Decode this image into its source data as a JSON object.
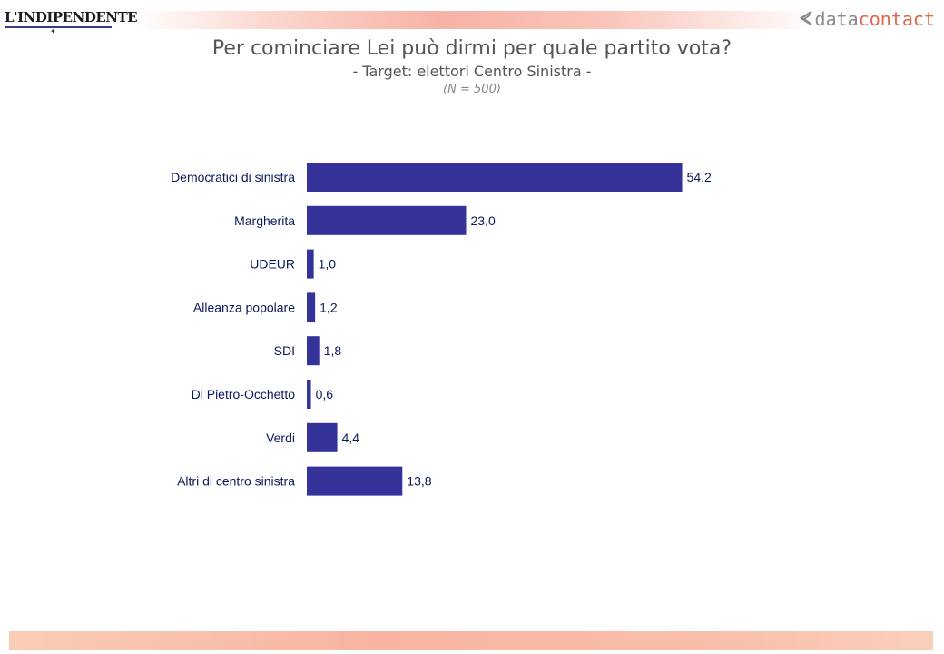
{
  "header": {
    "left_logo": "L'INDIPENDENTE",
    "right_logo_part1": "data",
    "right_logo_part2": "contact"
  },
  "chart_data": {
    "type": "bar",
    "orientation": "horizontal",
    "title": "Per cominciare Lei può dirmi per quale partito vota?",
    "subtitle": "- Target: elettori Centro Sinistra -",
    "note": "(N = 500)",
    "categories": [
      "Democratici di sinistra",
      "Margherita",
      "UDEUR",
      "Alleanza popolare",
      "SDI",
      "Di Pietro-Occhetto",
      "Verdi",
      "Altri di centro sinistra"
    ],
    "values": [
      54.2,
      23.0,
      1.0,
      1.2,
      1.8,
      0.6,
      4.4,
      13.8
    ],
    "value_labels": [
      "54,2",
      "23,0",
      "1,0",
      "1,2",
      "1,8",
      "0,6",
      "4,4",
      "13,8"
    ],
    "xlim": [
      0,
      100
    ],
    "grid": false,
    "legend": "none",
    "bar_color": "#333399"
  },
  "colors": {
    "bar": "#333399",
    "title_text": "#555555",
    "label_text": "#0b1a5c"
  }
}
